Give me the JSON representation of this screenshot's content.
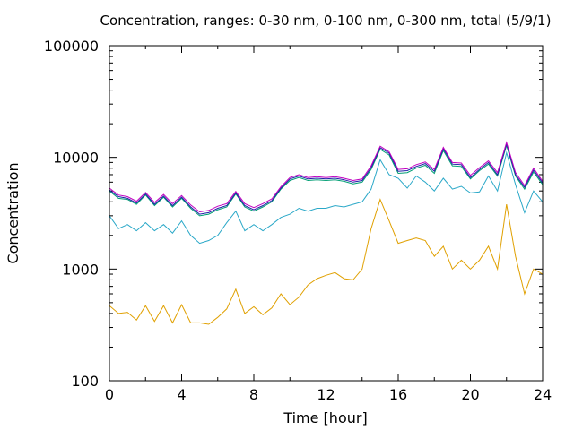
{
  "chart_data": {
    "type": "line",
    "title": "Concentration, ranges: 0-30 nm, 0-100 nm, 0-300 nm, total (5/9/1)",
    "xlabel": "Time [hour]",
    "ylabel": "Concentration",
    "xlim": [
      0,
      24
    ],
    "ylim": [
      100,
      100000
    ],
    "yscale": "log",
    "x_ticks": [
      "0",
      "4",
      "8",
      "12",
      "16",
      "20",
      "24"
    ],
    "x_tick_values": [
      0,
      4,
      8,
      12,
      16,
      20,
      24
    ],
    "x_minor_ticks": [
      2,
      6,
      10,
      14,
      18,
      22
    ],
    "y_ticks": [
      "100",
      "1000",
      "10000",
      "100000"
    ],
    "y_tick_values": [
      100,
      1000,
      10000,
      100000
    ],
    "grid": false,
    "legend": "none",
    "x": [
      0,
      0.5,
      1,
      1.5,
      2,
      2.5,
      3,
      3.5,
      4,
      4.5,
      5,
      5.5,
      6,
      6.5,
      7,
      7.5,
      8,
      8.5,
      9,
      9.5,
      10,
      10.5,
      11,
      11.5,
      12,
      12.5,
      13,
      13.5,
      14,
      14.5,
      15,
      15.5,
      16,
      16.5,
      17,
      17.5,
      18,
      18.5,
      19,
      19.5,
      20,
      20.5,
      21,
      21.5,
      22,
      22.5,
      23,
      23.5,
      24
    ],
    "series": [
      {
        "color": "#e0a000",
        "values": [
          470,
          400,
          410,
          350,
          470,
          340,
          470,
          330,
          480,
          330,
          330,
          320,
          370,
          440,
          660,
          400,
          460,
          390,
          450,
          600,
          480,
          560,
          720,
          820,
          880,
          930,
          820,
          800,
          1000,
          2300,
          4200,
          2700,
          1700,
          1800,
          1900,
          1800,
          1300,
          1600,
          1000,
          1200,
          1000,
          1200,
          1600,
          1000,
          3800,
          1300,
          600,
          1000,
          900
        ]
      },
      {
        "color": "#2aa8c8",
        "values": [
          3000,
          2300,
          2500,
          2200,
          2600,
          2200,
          2500,
          2100,
          2700,
          2000,
          1700,
          1800,
          2000,
          2600,
          3300,
          2200,
          2500,
          2200,
          2500,
          2900,
          3100,
          3500,
          3300,
          3500,
          3500,
          3700,
          3600,
          3800,
          4000,
          5200,
          9500,
          7000,
          6500,
          5300,
          6800,
          6000,
          5000,
          6500,
          5200,
          5500,
          4800,
          4900,
          6800,
          5000,
          11000,
          5700,
          3200,
          5000,
          4000
        ]
      },
      {
        "color": "#009e73",
        "values": [
          5000,
          4300,
          4200,
          3800,
          4600,
          3700,
          4400,
          3600,
          4300,
          3500,
          3000,
          3100,
          3400,
          3600,
          4700,
          3600,
          3300,
          3600,
          4000,
          5200,
          6200,
          6600,
          6200,
          6300,
          6200,
          6300,
          6100,
          5800,
          6000,
          7800,
          11800,
          10500,
          7200,
          7300,
          8000,
          8500,
          7200,
          11500,
          8400,
          8300,
          6400,
          7600,
          8700,
          6800,
          12800,
          6800,
          5200,
          7400,
          5700
        ]
      },
      {
        "color": "#1f1fa8",
        "values": [
          5100,
          4450,
          4300,
          3900,
          4700,
          3800,
          4500,
          3700,
          4400,
          3600,
          3100,
          3200,
          3500,
          3700,
          4800,
          3700,
          3400,
          3700,
          4100,
          5300,
          6400,
          6800,
          6400,
          6500,
          6400,
          6500,
          6300,
          6000,
          6200,
          8100,
          12200,
          10900,
          7500,
          7600,
          8300,
          8800,
          7500,
          11900,
          8700,
          8600,
          6600,
          7800,
          9000,
          7000,
          13200,
          7000,
          5400,
          7700,
          5900
        ]
      },
      {
        "color": "#c000c0",
        "values": [
          5300,
          4600,
          4450,
          4050,
          4850,
          3950,
          4650,
          3850,
          4550,
          3750,
          3250,
          3350,
          3650,
          3850,
          4950,
          3850,
          3550,
          3850,
          4250,
          5450,
          6600,
          7000,
          6600,
          6700,
          6600,
          6700,
          6500,
          6200,
          6400,
          8400,
          12600,
          11200,
          7800,
          7900,
          8600,
          9100,
          7800,
          12300,
          9000,
          8900,
          6900,
          8100,
          9300,
          7300,
          13600,
          7300,
          5600,
          8000,
          6100
        ]
      }
    ]
  }
}
